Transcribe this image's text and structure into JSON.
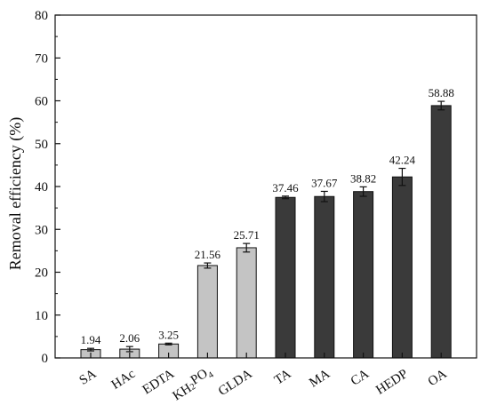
{
  "chart_data": {
    "type": "bar",
    "ylabel": "Removal efficiency (%)",
    "xlabel": "",
    "ylim": [
      0,
      80
    ],
    "yticks": [
      0,
      10,
      20,
      30,
      40,
      50,
      60,
      70,
      80
    ],
    "grid": false,
    "categories": [
      "SA",
      "HAc",
      "EDTA",
      "KH2PO4",
      "GLDA",
      "TA",
      "MA",
      "CA",
      "HEDP",
      "OA"
    ],
    "values": [
      1.94,
      2.06,
      3.25,
      21.56,
      25.71,
      37.46,
      37.67,
      38.82,
      42.24,
      58.88
    ],
    "value_labels": [
      "1.94",
      "2.06",
      "3.25",
      "21.56",
      "25.71",
      "37.46",
      "37.67",
      "38.82",
      "42.24",
      "58.88"
    ],
    "errors": [
      0.3,
      0.6,
      0.2,
      0.6,
      1.0,
      0.3,
      1.2,
      1.1,
      2.0,
      1.0
    ],
    "group": [
      "light",
      "light",
      "light",
      "light",
      "light",
      "dark",
      "dark",
      "dark",
      "dark",
      "dark"
    ],
    "colors": {
      "light": "#c4c4c4",
      "dark": "#3a3a3a",
      "edge": "#111111"
    }
  }
}
